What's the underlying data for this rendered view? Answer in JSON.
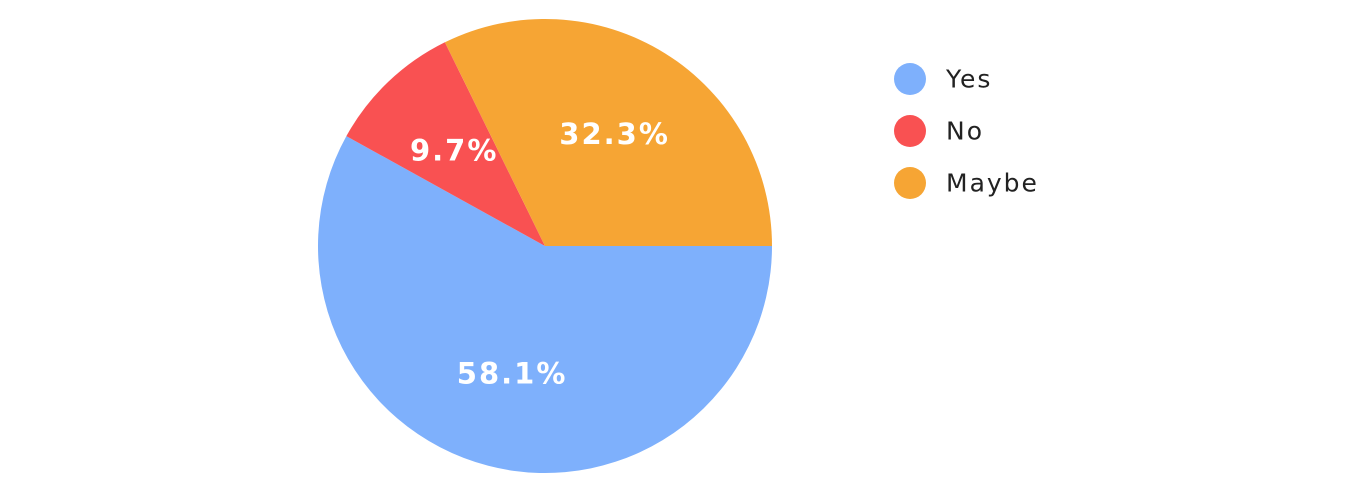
{
  "chart_data": {
    "type": "pie",
    "start_angle_deg": 0,
    "direction": "clockwise",
    "slices": [
      {
        "label": "Yes",
        "value": 58.1,
        "display": "58.1%",
        "color": "#7eb0fc"
      },
      {
        "label": "No",
        "value": 9.7,
        "display": "9.7%",
        "color": "#f95152"
      },
      {
        "label": "Maybe",
        "value": 32.3,
        "display": "32.3%",
        "color": "#f6a534"
      }
    ],
    "legend_position": "right"
  }
}
